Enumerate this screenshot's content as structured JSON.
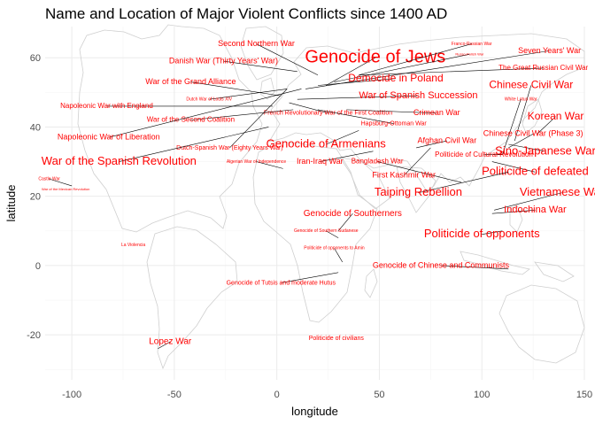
{
  "chart_data": {
    "type": "scatter",
    "title": "Name and Location of Major Violent Conflicts since 1400 AD",
    "xlabel": "longitude",
    "ylabel": "latitude",
    "xlim": [
      -113,
      150
    ],
    "ylim": [
      -33,
      69
    ],
    "xticks": [
      -100,
      -50,
      0,
      50,
      100,
      150
    ],
    "yticks": [
      -20,
      0,
      20,
      40,
      60
    ],
    "grid": true,
    "labels": [
      {
        "text": "Genocide of Jews",
        "x": 24,
        "y": 52,
        "size": 20,
        "lx": 48,
        "ly": 60
      },
      {
        "text": "Second Northern War",
        "x": 20,
        "y": 55,
        "size": 9,
        "lx": -10,
        "ly": 64
      },
      {
        "text": "Danish War (Thirty Years' War)",
        "x": 10,
        "y": 56,
        "size": 9,
        "lx": -26,
        "ly": 59
      },
      {
        "text": "Franco-Russian War",
        "x": 40,
        "y": 55,
        "size": 5,
        "lx": 95,
        "ly": 64
      },
      {
        "text": "Russo-Polish War",
        "x": 28,
        "y": 53,
        "size": 4,
        "lx": 94,
        "ly": 61
      },
      {
        "text": "Seven Years' War",
        "x": 14,
        "y": 51,
        "size": 9,
        "lx": 133,
        "ly": 62
      },
      {
        "text": "The Great Russian Civil War",
        "x": 40,
        "y": 55,
        "size": 8,
        "lx": 130,
        "ly": 57
      },
      {
        "text": "War of the Grand Alliance",
        "x": 2,
        "y": 49,
        "size": 9,
        "lx": -42,
        "ly": 53
      },
      {
        "text": "Democide in Poland",
        "x": 20,
        "y": 52,
        "size": 12,
        "lx": 58,
        "ly": 54
      },
      {
        "text": "Chinese Civil War",
        "x": 116,
        "y": 36,
        "size": 12,
        "lx": 124,
        "ly": 52
      },
      {
        "text": "Dutch War of Louis XIV",
        "x": 5,
        "y": 51,
        "size": 5,
        "lx": -33,
        "ly": 48
      },
      {
        "text": "War of Spanish Succession",
        "x": 10,
        "y": 48,
        "size": 11,
        "lx": 69,
        "ly": 49
      },
      {
        "text": "Napoleonic War with England",
        "x": -2,
        "y": 46,
        "size": 8,
        "lx": -83,
        "ly": 46
      },
      {
        "text": "White Lotus War",
        "x": 110,
        "y": 32,
        "size": 5,
        "lx": 119,
        "ly": 48
      },
      {
        "text": "French Revolutionary War of the First Coalition",
        "x": 6,
        "y": 47,
        "size": 7,
        "lx": 25,
        "ly": 44
      },
      {
        "text": "Crimean War",
        "x": 34,
        "y": 45,
        "size": 9,
        "lx": 78,
        "ly": 44
      },
      {
        "text": "Korean War",
        "x": 127,
        "y": 38,
        "size": 12,
        "lx": 136,
        "ly": 43
      },
      {
        "text": "War of the Second Coalition",
        "x": 8,
        "y": 45,
        "size": 8,
        "lx": -42,
        "ly": 42
      },
      {
        "text": "Hapsburg-Ottoman War",
        "x": 20,
        "y": 45,
        "size": 7,
        "lx": 57,
        "ly": 41
      },
      {
        "text": "Chinese Civil War (Phase 3)",
        "x": 113,
        "y": 34,
        "size": 9,
        "lx": 125,
        "ly": 38
      },
      {
        "text": "Napoleonic War of Liberation",
        "x": 12,
        "y": 51,
        "size": 9,
        "lx": -82,
        "ly": 37
      },
      {
        "text": "Genocide of Armenians",
        "x": 40,
        "y": 39,
        "size": 13,
        "lx": 24,
        "ly": 35
      },
      {
        "text": "Afghan Civil War",
        "x": 68,
        "y": 34,
        "size": 9,
        "lx": 83,
        "ly": 36
      },
      {
        "text": "Sino-Japanese War",
        "x": 113,
        "y": 35,
        "size": 13,
        "lx": 131,
        "ly": 33
      },
      {
        "text": "Dutch-Spanish War (Eighty Years War)",
        "x": 5,
        "y": 51,
        "size": 7,
        "lx": -23,
        "ly": 34
      },
      {
        "text": "Politicide of Cultural Revolution",
        "x": 110,
        "y": 32,
        "size": 8,
        "lx": 101,
        "ly": 32
      },
      {
        "text": "War of the Spanish Revolution",
        "x": -4,
        "y": 40,
        "size": 13,
        "lx": -77,
        "ly": 30
      },
      {
        "text": "Algerian War of Independence",
        "x": 3,
        "y": 28,
        "size": 5,
        "lx": -10,
        "ly": 30
      },
      {
        "text": "Iran-Iraq War",
        "x": 47,
        "y": 33,
        "size": 9,
        "lx": 21,
        "ly": 30
      },
      {
        "text": "Bangladesh War",
        "x": 90,
        "y": 24,
        "size": 8,
        "lx": 49,
        "ly": 30
      },
      {
        "text": "Politicide of defeated",
        "x": 105,
        "y": 30,
        "size": 13,
        "lx": 126,
        "ly": 27
      },
      {
        "text": "First Kashmir War",
        "x": 75,
        "y": 34,
        "size": 9,
        "lx": 62,
        "ly": 26
      },
      {
        "text": "Castle War",
        "x": -100,
        "y": 23,
        "size": 5,
        "lx": -111,
        "ly": 25
      },
      {
        "text": "Taiping Rebellion",
        "x": 113,
        "y": 27,
        "size": 13,
        "lx": 69,
        "ly": 21
      },
      {
        "text": "Vietnamese War",
        "x": 106,
        "y": 16,
        "size": 13,
        "lx": 139,
        "ly": 21
      },
      {
        "text": "War of the Mexican Revolution",
        "x": -102,
        "y": 23,
        "size": 4,
        "lx": -103,
        "ly": 22
      },
      {
        "text": "Indochina War",
        "x": 105,
        "y": 15,
        "size": 11,
        "lx": 126,
        "ly": 16
      },
      {
        "text": "Genocide of Southerners",
        "x": 30,
        "y": 10,
        "size": 10,
        "lx": 37,
        "ly": 15
      },
      {
        "text": "Politicide of opponents",
        "x": 110,
        "y": 10,
        "size": 13,
        "lx": 100,
        "ly": 9
      },
      {
        "text": "Genocide of Southern Sudanese",
        "x": 30,
        "y": 8,
        "size": 5,
        "lx": 24,
        "ly": 10
      },
      {
        "text": "La Violencia",
        "x": -74,
        "y": 5,
        "size": 5,
        "lx": -70,
        "ly": 6
      },
      {
        "text": "Politicide of opponents to Amin",
        "x": 32,
        "y": 1,
        "size": 5,
        "lx": 28,
        "ly": 5
      },
      {
        "text": "Genocide of Chinese and Communists",
        "x": 113,
        "y": -1,
        "size": 9,
        "lx": 80,
        "ly": 0
      },
      {
        "text": "Genocide of Tutsis and moderate Hutus",
        "x": 30,
        "y": -2,
        "size": 7,
        "lx": 2,
        "ly": -5
      },
      {
        "text": "Lopez War",
        "x": -58,
        "y": -24,
        "size": 10,
        "lx": -52,
        "ly": -22
      },
      {
        "text": "Politicide of civilians",
        "x": 25,
        "y": -20,
        "size": 7,
        "lx": 29,
        "ly": -21
      }
    ]
  }
}
